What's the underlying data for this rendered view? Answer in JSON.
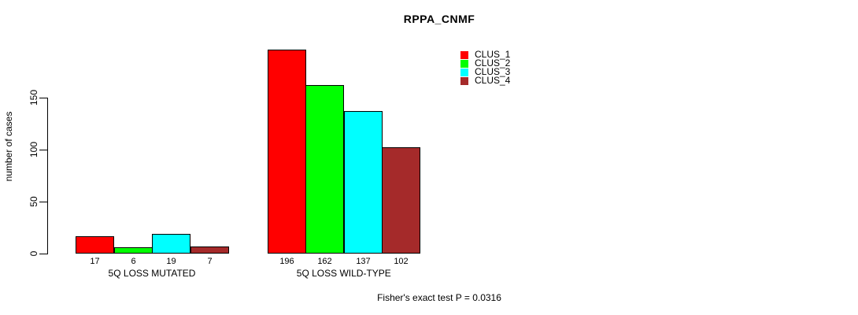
{
  "chart_data": {
    "type": "bar",
    "title": "RPPA_CNMF",
    "ylabel": "number of cases",
    "yticks": [
      0,
      50,
      100,
      150
    ],
    "ylim": [
      0,
      200
    ],
    "categories": [
      "5Q LOSS MUTATED",
      "5Q LOSS WILD-TYPE"
    ],
    "series": [
      {
        "name": "CLUS_1",
        "color": "#FF0000",
        "values": [
          17,
          196
        ]
      },
      {
        "name": "CLUS_2",
        "color": "#00FF00",
        "values": [
          6,
          162
        ]
      },
      {
        "name": "CLUS_3",
        "color": "#00FFFF",
        "values": [
          19,
          137
        ]
      },
      {
        "name": "CLUS_4",
        "color": "#A52A2A",
        "values": [
          7,
          102
        ]
      }
    ],
    "show_bar_value_labels": true,
    "legend_position": "top-right",
    "grid": false,
    "background": "#FFFFFF",
    "annotation": "Fisher's exact test P = 0.0316"
  }
}
